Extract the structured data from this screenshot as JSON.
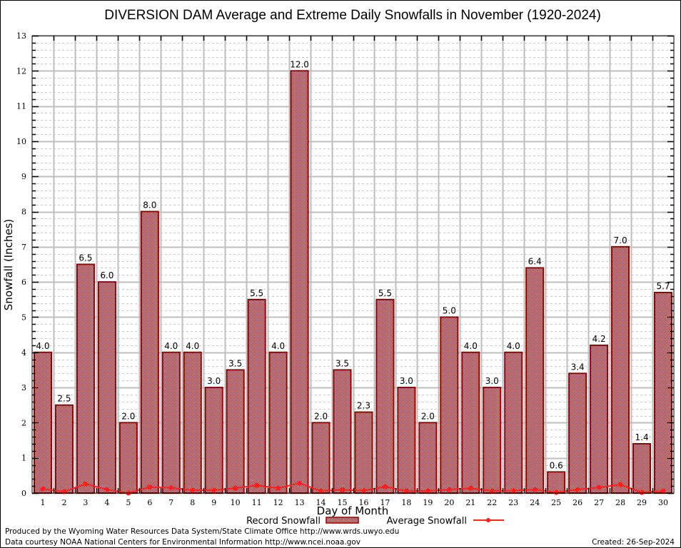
{
  "chart_data": {
    "type": "bar",
    "title": "DIVERSION DAM Average and Extreme Daily Snowfalls in November (1920-2024)",
    "xlabel": "Day of Month",
    "ylabel": "Snowfall (Inches)",
    "ylim": [
      0,
      13
    ],
    "yticks": [
      0,
      1,
      2,
      3,
      4,
      5,
      6,
      7,
      8,
      9,
      10,
      11,
      12,
      13
    ],
    "grid": true,
    "categories": [
      "1",
      "2",
      "3",
      "4",
      "5",
      "6",
      "7",
      "8",
      "9",
      "10",
      "11",
      "12",
      "13",
      "14",
      "15",
      "16",
      "17",
      "18",
      "19",
      "20",
      "21",
      "22",
      "23",
      "24",
      "25",
      "26",
      "27",
      "28",
      "29",
      "30"
    ],
    "series": [
      {
        "name": "Record Snowfall",
        "type": "bar",
        "color": "#8b0000",
        "values": [
          4.0,
          2.5,
          6.5,
          6.0,
          2.0,
          8.0,
          4.0,
          4.0,
          3.0,
          3.5,
          5.5,
          4.0,
          12.0,
          2.0,
          3.5,
          2.3,
          5.5,
          3.0,
          2.0,
          5.0,
          4.0,
          3.0,
          4.0,
          6.4,
          0.6,
          3.4,
          4.2,
          7.0,
          1.4,
          5.7
        ],
        "labels": [
          "4.0",
          "2.5",
          "6.5",
          "6.0",
          "2.0",
          "8.0",
          "4.0",
          "4.0",
          "3.0",
          "3.5",
          "5.5",
          "4.0",
          "12.0",
          "2.0",
          "3.5",
          "2.3",
          "5.5",
          "3.0",
          "2.0",
          "5.0",
          "4.0",
          "3.0",
          "4.0",
          "6.4",
          "0.6",
          "3.4",
          "4.2",
          "7.0",
          "1.4",
          "5.7"
        ]
      },
      {
        "name": "Average Snowfall",
        "type": "line",
        "color": "#ff2020",
        "values": [
          0.12,
          0.04,
          0.26,
          0.1,
          0.0,
          0.17,
          0.15,
          0.08,
          0.08,
          0.14,
          0.22,
          0.14,
          0.28,
          0.06,
          0.09,
          0.07,
          0.18,
          0.06,
          0.06,
          0.1,
          0.14,
          0.06,
          0.07,
          0.1,
          0.02,
          0.1,
          0.16,
          0.24,
          0.02,
          0.06
        ]
      }
    ],
    "legend": {
      "placement": "bottom-center",
      "entries": [
        "Record Snowfall",
        "Average Snowfall"
      ]
    }
  },
  "footer": {
    "line1": "Produced by the Wyoming Water Resources Data System/State Climate Office http://www.wrds.uwyo.edu",
    "line2": "Data courtesy NOAA National Centers for Environmental Information http://www.ncei.noaa.gov",
    "created": "Created: 26-Sep-2024"
  }
}
